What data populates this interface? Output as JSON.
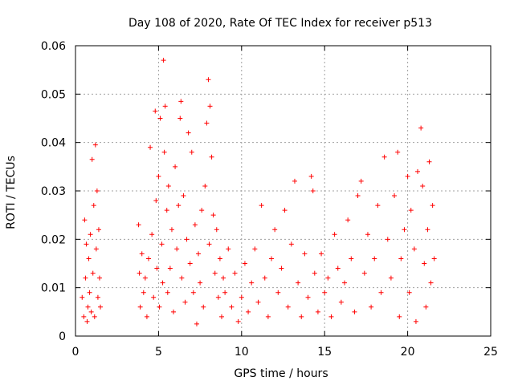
{
  "chart_data": {
    "type": "scatter",
    "title": "Day 108 of 2020, Rate Of TEC Index for receiver p513",
    "xlabel": "GPS time / hours",
    "ylabel": "ROTI / TECUs",
    "xlim": [
      0,
      25
    ],
    "ylim": [
      0,
      0.06
    ],
    "x_ticks": [
      0,
      5,
      10,
      15,
      20,
      25
    ],
    "x_tick_labels": [
      "0",
      "5",
      "10",
      "15",
      "20",
      "25"
    ],
    "y_ticks": [
      0,
      0.01,
      0.02,
      0.03,
      0.04,
      0.05,
      0.06
    ],
    "y_tick_labels": [
      "0",
      "0.01",
      "0.02",
      "0.03",
      "0.04",
      "0.05",
      "0.06"
    ],
    "grid": true,
    "marker": "plus",
    "color": "#ff0000",
    "points": [
      [
        0.4,
        0.008
      ],
      [
        0.5,
        0.004
      ],
      [
        0.55,
        0.024
      ],
      [
        0.6,
        0.012
      ],
      [
        0.65,
        0.019
      ],
      [
        0.7,
        0.003
      ],
      [
        0.75,
        0.006
      ],
      [
        0.8,
        0.016
      ],
      [
        0.85,
        0.009
      ],
      [
        0.9,
        0.021
      ],
      [
        0.95,
        0.005
      ],
      [
        1.0,
        0.0365
      ],
      [
        1.05,
        0.013
      ],
      [
        1.1,
        0.027
      ],
      [
        1.15,
        0.004
      ],
      [
        1.2,
        0.0395
      ],
      [
        1.25,
        0.018
      ],
      [
        1.3,
        0.03
      ],
      [
        1.35,
        0.008
      ],
      [
        1.4,
        0.022
      ],
      [
        1.45,
        0.012
      ],
      [
        1.5,
        0.006
      ],
      [
        3.8,
        0.023
      ],
      [
        3.85,
        0.013
      ],
      [
        3.9,
        0.006
      ],
      [
        4.0,
        0.017
      ],
      [
        4.1,
        0.009
      ],
      [
        4.2,
        0.012
      ],
      [
        4.3,
        0.004
      ],
      [
        4.4,
        0.016
      ],
      [
        4.5,
        0.039
      ],
      [
        4.6,
        0.021
      ],
      [
        4.7,
        0.008
      ],
      [
        4.8,
        0.0465
      ],
      [
        4.85,
        0.028
      ],
      [
        4.9,
        0.014
      ],
      [
        5.0,
        0.033
      ],
      [
        5.05,
        0.006
      ],
      [
        5.1,
        0.045
      ],
      [
        5.2,
        0.019
      ],
      [
        5.25,
        0.011
      ],
      [
        5.3,
        0.057
      ],
      [
        5.35,
        0.038
      ],
      [
        5.4,
        0.0475
      ],
      [
        5.5,
        0.026
      ],
      [
        5.55,
        0.009
      ],
      [
        5.6,
        0.031
      ],
      [
        5.7,
        0.014
      ],
      [
        5.8,
        0.022
      ],
      [
        5.9,
        0.005
      ],
      [
        6.0,
        0.035
      ],
      [
        6.1,
        0.018
      ],
      [
        6.2,
        0.027
      ],
      [
        6.3,
        0.045
      ],
      [
        6.35,
        0.0485
      ],
      [
        6.4,
        0.012
      ],
      [
        6.5,
        0.029
      ],
      [
        6.6,
        0.007
      ],
      [
        6.7,
        0.02
      ],
      [
        6.8,
        0.042
      ],
      [
        6.9,
        0.015
      ],
      [
        7.0,
        0.038
      ],
      [
        7.1,
        0.009
      ],
      [
        7.2,
        0.023
      ],
      [
        7.3,
        0.0025
      ],
      [
        7.4,
        0.017
      ],
      [
        7.5,
        0.011
      ],
      [
        7.6,
        0.026
      ],
      [
        7.7,
        0.006
      ],
      [
        7.8,
        0.031
      ],
      [
        7.9,
        0.044
      ],
      [
        8.0,
        0.053
      ],
      [
        8.05,
        0.019
      ],
      [
        8.1,
        0.0475
      ],
      [
        8.2,
        0.037
      ],
      [
        8.3,
        0.025
      ],
      [
        8.4,
        0.013
      ],
      [
        8.5,
        0.022
      ],
      [
        8.6,
        0.008
      ],
      [
        8.7,
        0.016
      ],
      [
        8.8,
        0.004
      ],
      [
        8.9,
        0.012
      ],
      [
        9.0,
        0.009
      ],
      [
        9.2,
        0.018
      ],
      [
        9.4,
        0.006
      ],
      [
        9.6,
        0.013
      ],
      [
        9.8,
        0.003
      ],
      [
        10.0,
        0.008
      ],
      [
        10.2,
        0.015
      ],
      [
        10.4,
        0.005
      ],
      [
        10.6,
        0.011
      ],
      [
        10.8,
        0.018
      ],
      [
        11.0,
        0.007
      ],
      [
        11.2,
        0.027
      ],
      [
        11.4,
        0.012
      ],
      [
        11.6,
        0.004
      ],
      [
        11.8,
        0.016
      ],
      [
        12.0,
        0.022
      ],
      [
        12.2,
        0.009
      ],
      [
        12.4,
        0.014
      ],
      [
        12.6,
        0.026
      ],
      [
        12.8,
        0.006
      ],
      [
        13.0,
        0.019
      ],
      [
        13.2,
        0.032
      ],
      [
        13.4,
        0.011
      ],
      [
        13.6,
        0.004
      ],
      [
        13.8,
        0.017
      ],
      [
        14.0,
        0.008
      ],
      [
        14.2,
        0.033
      ],
      [
        14.3,
        0.03
      ],
      [
        14.4,
        0.013
      ],
      [
        14.6,
        0.005
      ],
      [
        14.8,
        0.017
      ],
      [
        15.0,
        0.009
      ],
      [
        15.2,
        0.012
      ],
      [
        15.4,
        0.004
      ],
      [
        15.6,
        0.021
      ],
      [
        15.8,
        0.014
      ],
      [
        16.0,
        0.007
      ],
      [
        16.2,
        0.011
      ],
      [
        16.4,
        0.024
      ],
      [
        16.6,
        0.016
      ],
      [
        16.8,
        0.005
      ],
      [
        17.0,
        0.029
      ],
      [
        17.2,
        0.032
      ],
      [
        17.4,
        0.013
      ],
      [
        17.6,
        0.021
      ],
      [
        17.8,
        0.006
      ],
      [
        18.0,
        0.016
      ],
      [
        18.2,
        0.027
      ],
      [
        18.4,
        0.009
      ],
      [
        18.6,
        0.037
      ],
      [
        18.8,
        0.02
      ],
      [
        19.0,
        0.012
      ],
      [
        19.2,
        0.029
      ],
      [
        19.4,
        0.038
      ],
      [
        19.5,
        0.004
      ],
      [
        19.6,
        0.016
      ],
      [
        19.8,
        0.022
      ],
      [
        20.0,
        0.033
      ],
      [
        20.1,
        0.009
      ],
      [
        20.2,
        0.026
      ],
      [
        20.4,
        0.018
      ],
      [
        20.5,
        0.003
      ],
      [
        20.6,
        0.034
      ],
      [
        20.8,
        0.043
      ],
      [
        20.9,
        0.031
      ],
      [
        21.0,
        0.015
      ],
      [
        21.1,
        0.006
      ],
      [
        21.2,
        0.022
      ],
      [
        21.3,
        0.036
      ],
      [
        21.4,
        0.011
      ],
      [
        21.5,
        0.027
      ],
      [
        21.6,
        0.016
      ]
    ]
  }
}
